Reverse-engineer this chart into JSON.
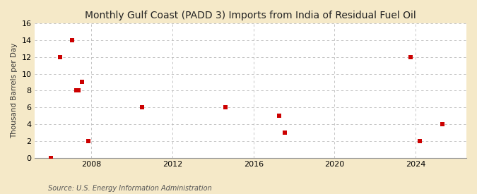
{
  "title": "Monthly Gulf Coast (PADD 3) Imports from India of Residual Fuel Oil",
  "ylabel": "Thousand Barrels per Day",
  "source": "Source: U.S. Energy Information Administration",
  "fig_background_color": "#f5e9c8",
  "plot_background_color": "#ffffff",
  "marker_color": "#cc0000",
  "marker_size": 25,
  "xlim": [
    2005.2,
    2026.5
  ],
  "ylim": [
    0,
    16
  ],
  "yticks": [
    0,
    2,
    4,
    6,
    8,
    10,
    12,
    14,
    16
  ],
  "xticks": [
    2008,
    2012,
    2016,
    2020,
    2024
  ],
  "grid_color": "#bbbbbb",
  "data_x": [
    2006.0,
    2006.45,
    2007.05,
    2007.25,
    2007.35,
    2007.55,
    2007.85,
    2010.5,
    2014.6,
    2017.25,
    2017.55,
    2023.75,
    2024.2,
    2025.3
  ],
  "data_y": [
    0,
    12,
    14,
    8,
    8,
    9,
    2,
    6,
    6,
    5,
    3,
    12,
    2,
    4
  ],
  "title_fontsize": 10,
  "tick_fontsize": 8,
  "ylabel_fontsize": 7.5,
  "source_fontsize": 7
}
